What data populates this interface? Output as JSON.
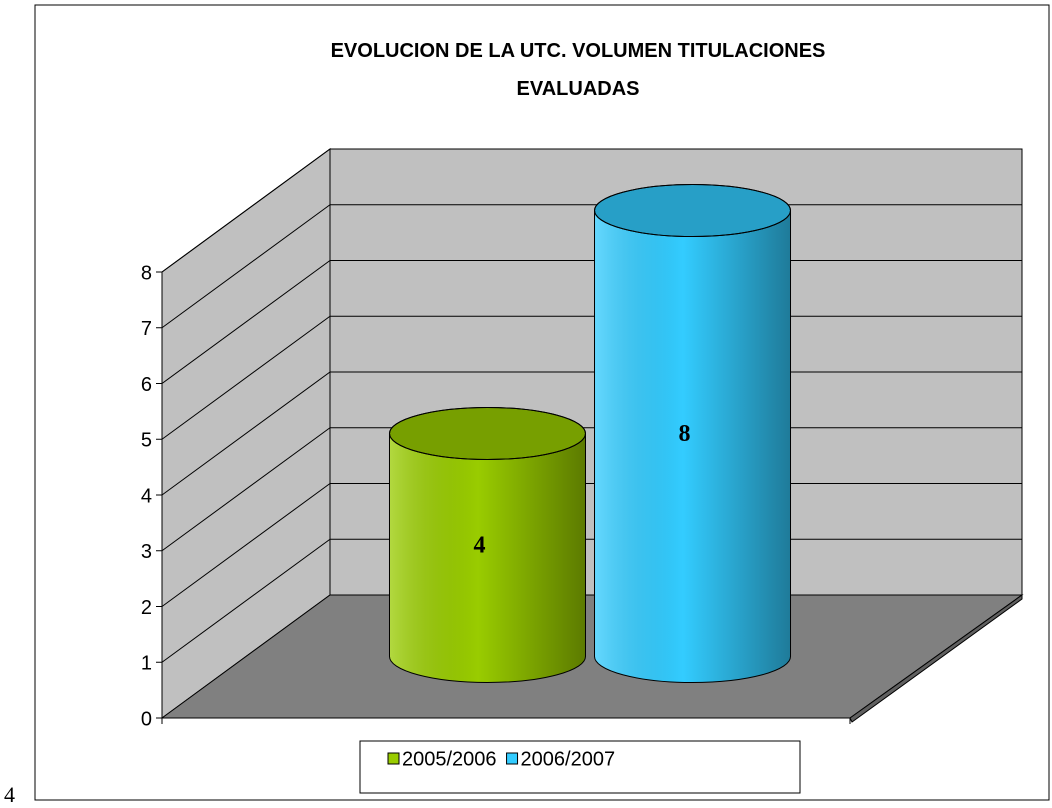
{
  "chart_data": {
    "type": "cylinder3d",
    "title": "EVOLUCION DE LA UTC. VOLUMEN TITULACIONES EVALUADAS",
    "categories": [
      null
    ],
    "series": [
      {
        "name": "2005/2006",
        "color": "#99cc00",
        "values": [
          4
        ]
      },
      {
        "name": "2006/2007",
        "color": "#33ccff",
        "values": [
          8
        ]
      }
    ],
    "ylim": [
      0,
      8
    ],
    "yticks": [
      0,
      1,
      2,
      3,
      4,
      5,
      6,
      7,
      8
    ],
    "grid": true,
    "legend": "bottom"
  },
  "page_number": "4"
}
